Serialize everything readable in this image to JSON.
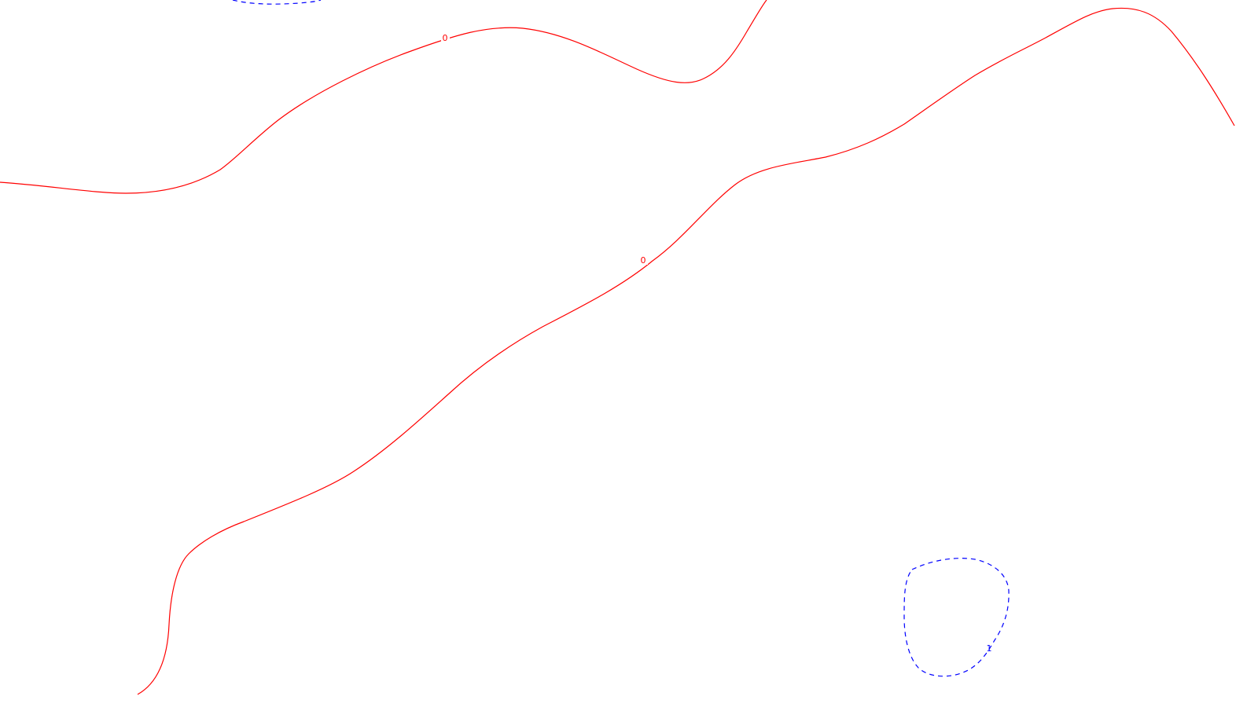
{
  "chart_data": {
    "type": "contour",
    "title": "",
    "xlabel": "",
    "ylabel": "",
    "grid": false,
    "legend": "none",
    "colors": {
      "positive": "#ff0000",
      "negative": "#0000ff",
      "background": "#ffffff"
    },
    "levels": [
      {
        "id": "level-0-upper",
        "level": 0,
        "label": "0",
        "color": "#ff0000",
        "style": "solid"
      },
      {
        "id": "level-0-lower",
        "level": 0,
        "label": "0",
        "color": "#ff0000",
        "style": "solid"
      },
      {
        "id": "level-1-loop",
        "level": 1,
        "label": "1",
        "color": "#0000ff",
        "style": "dashed"
      },
      {
        "id": "level-top-fragment",
        "level": null,
        "label": "",
        "color": "#0000ff",
        "style": "dashed"
      }
    ]
  }
}
